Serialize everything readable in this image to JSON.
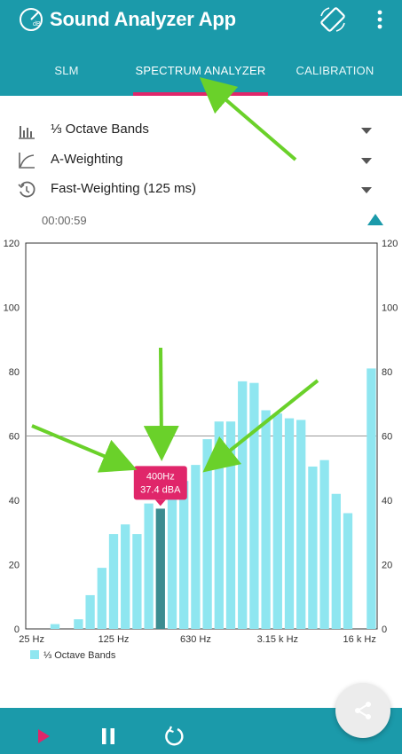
{
  "app": {
    "title": "Sound Analyzer App",
    "accent": "#1b9aaa",
    "highlight": "#e0266a"
  },
  "tabs": [
    {
      "label": "SLM"
    },
    {
      "label": "SPECTRUM ANALYZER"
    },
    {
      "label": "CALIBRATION"
    }
  ],
  "settings": [
    {
      "label": "⅓ Octave Bands",
      "icon": "bar-chart-icon"
    },
    {
      "label": "A-Weighting",
      "icon": "curve-icon"
    },
    {
      "label": "Fast-Weighting (125 ms)",
      "icon": "history-icon"
    }
  ],
  "timer": "00:00:59",
  "tooltip": {
    "freq": "400Hz",
    "level": "37.4 dBA"
  },
  "legend": {
    "label": "⅓ Octave Bands"
  },
  "chart_data": {
    "type": "bar",
    "ylim": [
      0,
      120
    ],
    "yticks": [
      "0",
      "20",
      "40",
      "60",
      "80",
      "100",
      "120"
    ],
    "xticks": [
      "25 Hz",
      "125 Hz",
      "630 Hz",
      "3.15 k Hz",
      "16 k Hz"
    ],
    "reference_line": 60,
    "series": [
      {
        "name": "⅓ Octave Bands",
        "color": "#8fe6f0",
        "highlight_color": "#3b8c90",
        "values": [
          0,
          0,
          1.5,
          0,
          3,
          10.5,
          19,
          29.5,
          32.5,
          29.5,
          39,
          37.4,
          40.5,
          46,
          51,
          59,
          64.5,
          64.5,
          77,
          76.5,
          68,
          67,
          65.5,
          65,
          50.5,
          52.5,
          42,
          36,
          0,
          81
        ],
        "highlighted_index": 11
      }
    ]
  },
  "controls": [
    "play-icon",
    "pause-icon",
    "replay-icon",
    "share-icon"
  ]
}
